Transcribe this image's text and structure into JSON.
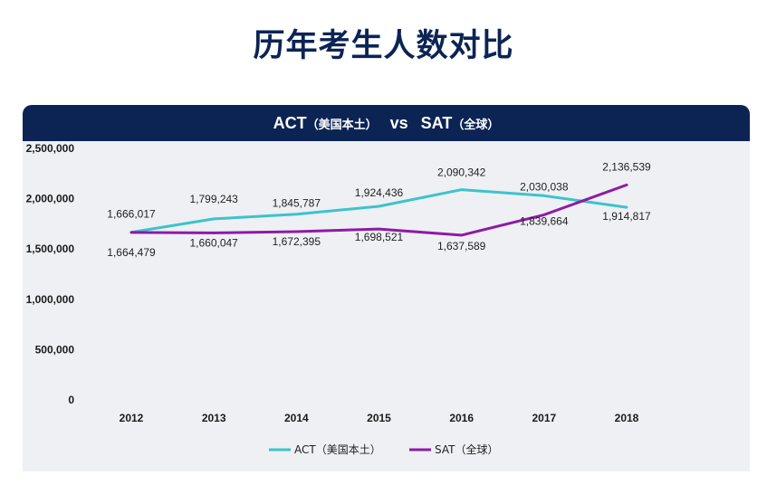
{
  "page": {
    "title": "历年考生人数对比"
  },
  "panel": {
    "header_left": "ACT",
    "header_left_note": "（美国本土）",
    "header_vs": "vs",
    "header_right": "SAT",
    "header_right_note": "（全球）"
  },
  "chart_data": {
    "type": "line",
    "x": [
      "2012",
      "2013",
      "2014",
      "2015",
      "2016",
      "2017",
      "2018"
    ],
    "ylim": [
      0,
      2500000
    ],
    "yticks": [
      "0",
      "500,000",
      "1,000,000",
      "1,500,000",
      "2,000,000",
      "2,500,000"
    ],
    "grid": false,
    "legend_position": "bottom",
    "series": [
      {
        "name": "ACT（美国本土）",
        "color": "#3cc3cc",
        "values": [
          1666017,
          1799243,
          1845787,
          1924436,
          2090342,
          2030038,
          1914817
        ],
        "labels": [
          "1,666,017",
          "1,799,243",
          "1,845,787",
          "1,924,436",
          "2,090,342",
          "2,030,038",
          "1,914,817"
        ]
      },
      {
        "name": "SAT（全球）",
        "color": "#8e1aa6",
        "values": [
          1664479,
          1660047,
          1672395,
          1698521,
          1637589,
          1839664,
          2136539
        ],
        "labels": [
          "1,664,479",
          "1,660,047",
          "1,672,395",
          "1,698,521",
          "1,637,589",
          "1,839,664",
          "2,136,539"
        ]
      }
    ]
  }
}
